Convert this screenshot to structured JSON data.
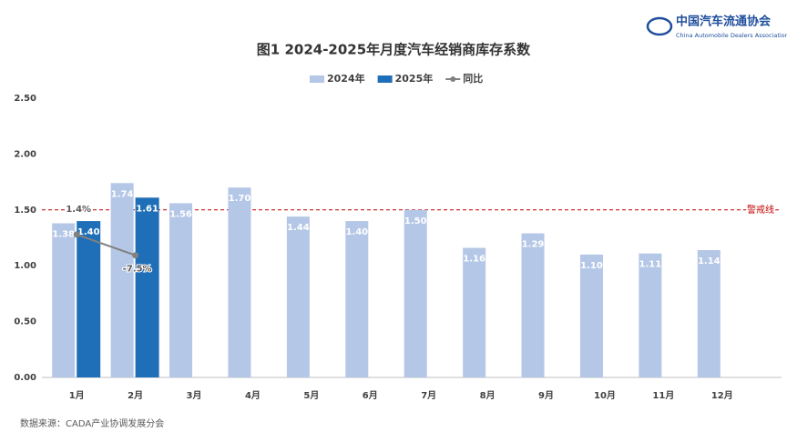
{
  "chart_data": {
    "type": "bar",
    "title": "图1  2024-2025年月度汽车经销商库存系数",
    "logo": {
      "name": "中国汽车流通协会",
      "subname": "China Automobile Dealers Association"
    },
    "source": "数据来源：CADA产业协调发展分会",
    "categories": [
      "1月",
      "2月",
      "3月",
      "4月",
      "5月",
      "6月",
      "7月",
      "8月",
      "9月",
      "10月",
      "11月",
      "12月"
    ],
    "series": [
      {
        "name": "2024年",
        "color": "#b4c7e7",
        "values": [
          1.38,
          1.74,
          1.56,
          1.7,
          1.44,
          1.4,
          1.5,
          1.16,
          1.29,
          1.1,
          1.11,
          1.14
        ],
        "value_labels": [
          "1.38",
          "1.74",
          "1.56",
          "1.70",
          "1.44",
          "1.40",
          "1.50",
          "1.16",
          "1.29",
          "1.10",
          "1.11",
          "1.14"
        ]
      },
      {
        "name": "2025年",
        "color": "#1f6fb8",
        "values": [
          1.4,
          1.61,
          null,
          null,
          null,
          null,
          null,
          null,
          null,
          null,
          null,
          null
        ],
        "value_labels": [
          "1.40",
          "1.61",
          null,
          null,
          null,
          null,
          null,
          null,
          null,
          null,
          null,
          null
        ]
      },
      {
        "name": "同比",
        "color": "#808080",
        "type": "line",
        "axis": "y2",
        "values": [
          1.4,
          -7.5,
          null,
          null,
          null,
          null,
          null,
          null,
          null,
          null,
          null,
          null
        ],
        "value_labels": [
          "1.4%",
          "-7.5%",
          null,
          null,
          null,
          null,
          null,
          null,
          null,
          null,
          null,
          null
        ]
      }
    ],
    "ylim": [
      0,
      2.5
    ],
    "yticks": [
      {
        "value": 0,
        "label": "0.00"
      },
      {
        "value": 0.5,
        "label": "0.50"
      },
      {
        "value": 1,
        "label": "1.00"
      },
      {
        "value": 1.5,
        "label": "1.50"
      },
      {
        "value": 2,
        "label": "2.00"
      },
      {
        "value": 2.5,
        "label": "2.50"
      }
    ],
    "y2lim": [
      -60,
      60
    ],
    "reference_line": {
      "value": 1.5,
      "label": "警戒线",
      "color": "#c00000"
    },
    "grid": false
  }
}
